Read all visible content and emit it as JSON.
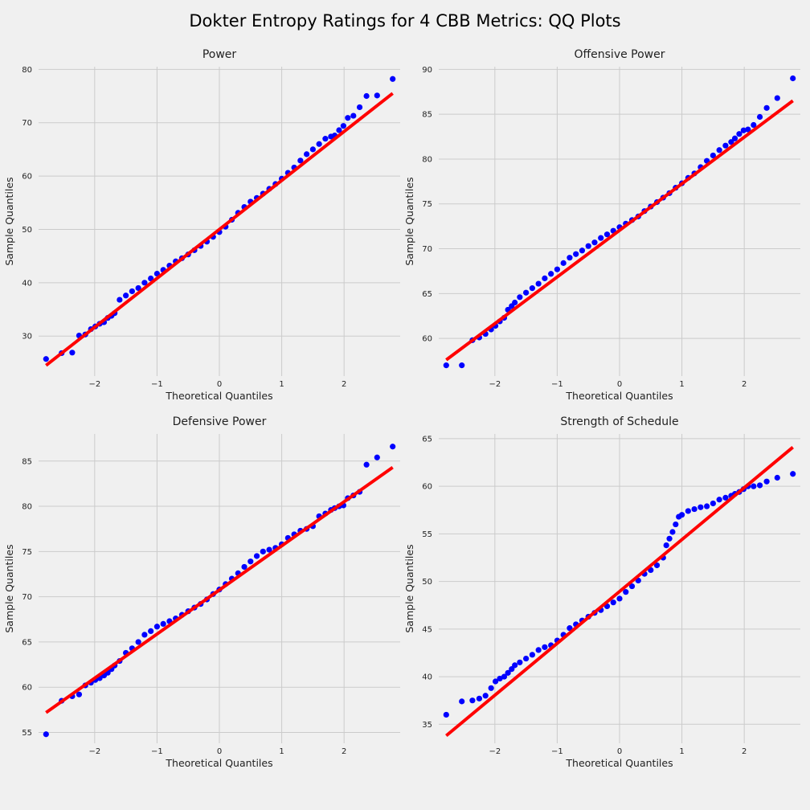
{
  "figure": {
    "title": "Dokter Entropy Ratings for 4 CBB Metrics: QQ Plots",
    "background": "#f0f0f0"
  },
  "colors": {
    "points": "#0000ff",
    "fit_line": "#ff0000",
    "grid": "#cbcbcb"
  },
  "chart_data": [
    {
      "type": "scatter",
      "title": "Power",
      "xlabel": "Theoretical Quantiles",
      "ylabel": "Sample Quantiles",
      "xlim": [
        -2.9,
        2.9
      ],
      "ylim": [
        22.5,
        80.5
      ],
      "xticks": [
        -2,
        -1,
        0,
        1,
        2
      ],
      "yticks": [
        30,
        40,
        50,
        60,
        70,
        80
      ],
      "grid": true,
      "reference_line": {
        "x": [
          -2.78,
          2.78
        ],
        "y": [
          24.5,
          75.5
        ]
      },
      "points": {
        "x": [
          -2.78,
          -2.53,
          -2.36,
          -2.25,
          -2.15,
          -2.06,
          -1.99,
          -1.92,
          -1.85,
          -1.79,
          -1.73,
          -1.68,
          -1.6,
          -1.5,
          -1.4,
          -1.3,
          -1.2,
          -1.1,
          -1.0,
          -0.9,
          -0.8,
          -0.7,
          -0.6,
          -0.5,
          -0.4,
          -0.3,
          -0.2,
          -0.1,
          0.0,
          0.1,
          0.2,
          0.3,
          0.4,
          0.5,
          0.6,
          0.7,
          0.8,
          0.9,
          1.0,
          1.1,
          1.2,
          1.3,
          1.4,
          1.5,
          1.6,
          1.7,
          1.79,
          1.85,
          1.92,
          1.99,
          2.06,
          2.15,
          2.25,
          2.36,
          2.53,
          2.78
        ],
        "y": [
          25.7,
          26.8,
          26.9,
          30.1,
          30.3,
          31.3,
          31.8,
          32.3,
          32.6,
          33.4,
          33.8,
          34.3,
          36.8,
          37.6,
          38.4,
          39.0,
          40.0,
          40.8,
          41.7,
          42.4,
          43.2,
          44.0,
          44.6,
          45.3,
          46.1,
          46.9,
          47.7,
          48.6,
          49.5,
          50.5,
          51.8,
          53.1,
          54.2,
          55.2,
          55.9,
          56.7,
          57.6,
          58.5,
          59.5,
          60.6,
          61.6,
          62.9,
          64.1,
          65.0,
          66.0,
          67.0,
          67.4,
          67.6,
          68.6,
          69.4,
          70.9,
          71.3,
          72.9,
          75.0,
          75.1,
          78.2
        ]
      }
    },
    {
      "type": "scatter",
      "title": "Offensive Power",
      "xlabel": "Theoretical Quantiles",
      "ylabel": "Sample Quantiles",
      "xlim": [
        -2.9,
        2.9
      ],
      "ylim": [
        55.8,
        90.3
      ],
      "xticks": [
        -2,
        -1,
        0,
        1,
        2
      ],
      "yticks": [
        60,
        65,
        70,
        75,
        80,
        85,
        90
      ],
      "grid": true,
      "reference_line": {
        "x": [
          -2.78,
          2.78
        ],
        "y": [
          57.6,
          86.5
        ]
      },
      "points": {
        "x": [
          -2.78,
          -2.53,
          -2.36,
          -2.25,
          -2.15,
          -2.06,
          -1.99,
          -1.92,
          -1.85,
          -1.79,
          -1.73,
          -1.68,
          -1.6,
          -1.5,
          -1.4,
          -1.3,
          -1.2,
          -1.1,
          -1.0,
          -0.9,
          -0.8,
          -0.7,
          -0.6,
          -0.5,
          -0.4,
          -0.3,
          -0.2,
          -0.1,
          0.0,
          0.1,
          0.2,
          0.3,
          0.4,
          0.5,
          0.6,
          0.7,
          0.8,
          0.9,
          1.0,
          1.1,
          1.2,
          1.3,
          1.4,
          1.5,
          1.6,
          1.7,
          1.79,
          1.85,
          1.92,
          1.99,
          2.06,
          2.15,
          2.25,
          2.36,
          2.53,
          2.78
        ],
        "y": [
          57.0,
          57.0,
          59.8,
          60.1,
          60.5,
          61.0,
          61.4,
          61.9,
          62.3,
          63.2,
          63.6,
          64.0,
          64.6,
          65.1,
          65.6,
          66.1,
          66.7,
          67.2,
          67.7,
          68.4,
          69.0,
          69.4,
          69.8,
          70.3,
          70.7,
          71.2,
          71.6,
          72.0,
          72.4,
          72.8,
          73.2,
          73.6,
          74.2,
          74.7,
          75.2,
          75.7,
          76.2,
          76.8,
          77.3,
          77.9,
          78.4,
          79.1,
          79.8,
          80.4,
          81.0,
          81.5,
          81.9,
          82.3,
          82.8,
          83.2,
          83.3,
          83.8,
          84.7,
          85.7,
          86.8,
          89.0
        ]
      }
    },
    {
      "type": "scatter",
      "title": "Defensive Power",
      "xlabel": "Theoretical Quantiles",
      "ylabel": "Sample Quantiles",
      "xlim": [
        -2.9,
        2.9
      ],
      "ylim": [
        53.8,
        88.0
      ],
      "xticks": [
        -2,
        -1,
        0,
        1,
        2
      ],
      "yticks": [
        55,
        60,
        65,
        70,
        75,
        80,
        85
      ],
      "grid": true,
      "reference_line": {
        "x": [
          -2.78,
          2.78
        ],
        "y": [
          57.2,
          84.3
        ]
      },
      "points": {
        "x": [
          -2.78,
          -2.53,
          -2.36,
          -2.25,
          -2.15,
          -2.06,
          -1.99,
          -1.92,
          -1.85,
          -1.79,
          -1.73,
          -1.68,
          -1.6,
          -1.5,
          -1.4,
          -1.3,
          -1.2,
          -1.1,
          -1.0,
          -0.9,
          -0.8,
          -0.7,
          -0.6,
          -0.5,
          -0.4,
          -0.3,
          -0.2,
          -0.1,
          0.0,
          0.1,
          0.2,
          0.3,
          0.4,
          0.5,
          0.6,
          0.7,
          0.8,
          0.9,
          1.0,
          1.1,
          1.2,
          1.3,
          1.4,
          1.5,
          1.6,
          1.7,
          1.79,
          1.85,
          1.92,
          1.99,
          2.06,
          2.15,
          2.25,
          2.36,
          2.53,
          2.78
        ],
        "y": [
          54.8,
          58.5,
          59.0,
          59.2,
          60.2,
          60.5,
          60.8,
          61.0,
          61.3,
          61.6,
          62.0,
          62.4,
          62.9,
          63.8,
          64.3,
          65.0,
          65.8,
          66.2,
          66.7,
          67.0,
          67.3,
          67.6,
          68.0,
          68.4,
          68.8,
          69.2,
          69.7,
          70.3,
          70.8,
          71.4,
          72.0,
          72.6,
          73.3,
          73.9,
          74.5,
          75.0,
          75.2,
          75.4,
          75.8,
          76.5,
          76.9,
          77.3,
          77.5,
          77.8,
          78.9,
          79.2,
          79.6,
          79.8,
          80.0,
          80.1,
          80.9,
          81.2,
          81.6,
          84.6,
          85.4,
          86.6
        ]
      }
    },
    {
      "type": "scatter",
      "title": "Strength of Schedule",
      "xlabel": "Theoretical Quantiles",
      "ylabel": "Sample Quantiles",
      "xlim": [
        -2.9,
        2.9
      ],
      "ylim": [
        33.0,
        65.5
      ],
      "xticks": [
        -2,
        -1,
        0,
        1,
        2
      ],
      "yticks": [
        35,
        40,
        45,
        50,
        55,
        60,
        65
      ],
      "grid": true,
      "reference_line": {
        "x": [
          -2.78,
          2.78
        ],
        "y": [
          33.8,
          64.1
        ]
      },
      "points": {
        "x": [
          -2.78,
          -2.53,
          -2.36,
          -2.25,
          -2.15,
          -2.06,
          -1.99,
          -1.92,
          -1.85,
          -1.79,
          -1.73,
          -1.68,
          -1.6,
          -1.5,
          -1.4,
          -1.3,
          -1.2,
          -1.1,
          -1.0,
          -0.9,
          -0.8,
          -0.7,
          -0.6,
          -0.5,
          -0.4,
          -0.3,
          -0.2,
          -0.1,
          0.0,
          0.1,
          0.2,
          0.3,
          0.4,
          0.5,
          0.6,
          0.7,
          0.75,
          0.8,
          0.85,
          0.9,
          0.95,
          1.0,
          1.1,
          1.2,
          1.3,
          1.4,
          1.5,
          1.6,
          1.7,
          1.79,
          1.85,
          1.92,
          1.99,
          2.06,
          2.15,
          2.25,
          2.36,
          2.53,
          2.78
        ],
        "y": [
          36.0,
          37.4,
          37.5,
          37.7,
          38.0,
          38.8,
          39.5,
          39.8,
          40.0,
          40.4,
          40.8,
          41.2,
          41.5,
          41.9,
          42.3,
          42.8,
          43.1,
          43.3,
          43.8,
          44.4,
          45.1,
          45.5,
          45.9,
          46.3,
          46.7,
          47.0,
          47.4,
          47.8,
          48.2,
          48.9,
          49.5,
          50.1,
          50.8,
          51.2,
          51.7,
          52.5,
          53.8,
          54.5,
          55.2,
          56.0,
          56.8,
          57.0,
          57.4,
          57.6,
          57.8,
          57.9,
          58.2,
          58.6,
          58.8,
          59.0,
          59.2,
          59.4,
          59.7,
          60.0,
          60.0,
          60.1,
          60.5,
          60.9,
          61.3
        ]
      }
    }
  ]
}
